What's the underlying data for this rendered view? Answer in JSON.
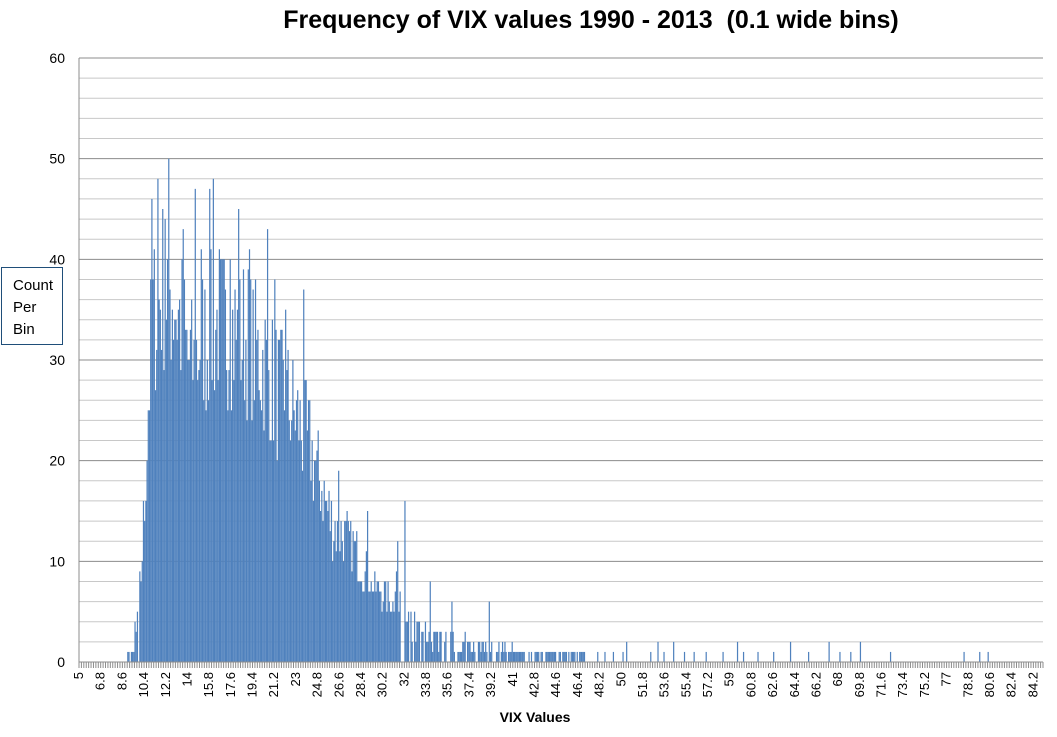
{
  "chart_data": {
    "type": "bar",
    "title": "Frequency of VIX values 1990 - 2013  (0.1 wide bins)",
    "xlabel": "VIX Values",
    "ylabel": [
      "Count",
      "Per",
      "Bin"
    ],
    "ylim": [
      0,
      60
    ],
    "y_ticks": [
      0,
      10,
      20,
      30,
      40,
      50,
      60
    ],
    "x_tick_labels": [
      "5",
      "6.8",
      "8.6",
      "10.4",
      "12.2",
      "14",
      "15.8",
      "17.6",
      "19.4",
      "21.2",
      "23",
      "24.8",
      "26.6",
      "28.4",
      "30.2",
      "32",
      "33.8",
      "35.6",
      "37.4",
      "39.2",
      "41",
      "42.8",
      "44.6",
      "46.4",
      "48.2",
      "50",
      "51.8",
      "53.6",
      "55.4",
      "57.2",
      "59",
      "60.8",
      "62.6",
      "64.4",
      "66.2",
      "68",
      "69.8",
      "71.6",
      "73.4",
      "75.2",
      "77",
      "78.8",
      "80.6",
      "82.4",
      "84.2"
    ],
    "bin_width": 0.1,
    "x_range": [
      5,
      85
    ],
    "gridlines": true,
    "legend": "none",
    "bar_color": "#4f81bd",
    "envelope": {
      "x": [
        8.9,
        9.3,
        9.8,
        10.1,
        10.4,
        10.7,
        11.0,
        11.5,
        12.0,
        12.4,
        13.0,
        13.5,
        14.0,
        14.5,
        15.0,
        15.8,
        16.5,
        17.0,
        17.6,
        18.2,
        19.0,
        19.4,
        20.0,
        20.6,
        21.2,
        22.0,
        23.0,
        23.8,
        24.8,
        25.5,
        26.0,
        26.6,
        27.5,
        28.4,
        29.2,
        30.2,
        31.2,
        32.0,
        33.0,
        33.8,
        35.0,
        36.0,
        37.4,
        38.5,
        39.2,
        40.5,
        41.5,
        42.8,
        44.0,
        45.5,
        47.0
      ],
      "y": [
        0,
        1,
        4,
        9,
        16,
        27,
        34,
        37,
        39,
        38,
        37,
        34,
        31,
        30,
        33,
        33,
        35,
        34,
        34,
        33,
        33,
        32,
        31,
        30,
        28,
        27,
        25,
        23,
        19,
        16,
        14,
        13,
        12,
        10,
        8,
        7,
        6,
        4,
        3,
        3,
        2.5,
        2,
        1.7,
        1.5,
        1.3,
        1.2,
        1,
        1,
        1,
        0.8,
        0.5
      ]
    },
    "peaks": [
      {
        "x": 11.0,
        "y": 46
      },
      {
        "x": 11.5,
        "y": 48
      },
      {
        "x": 12.1,
        "y": 44
      },
      {
        "x": 12.4,
        "y": 50
      },
      {
        "x": 13.6,
        "y": 43
      },
      {
        "x": 14.6,
        "y": 47
      },
      {
        "x": 15.1,
        "y": 41
      },
      {
        "x": 15.8,
        "y": 47
      },
      {
        "x": 16.1,
        "y": 48
      },
      {
        "x": 17.5,
        "y": 40
      },
      {
        "x": 18.2,
        "y": 45
      },
      {
        "x": 19.1,
        "y": 41
      },
      {
        "x": 20.6,
        "y": 43
      },
      {
        "x": 21.2,
        "y": 38
      },
      {
        "x": 22.1,
        "y": 35
      },
      {
        "x": 23.6,
        "y": 37
      },
      {
        "x": 26.5,
        "y": 19
      },
      {
        "x": 28.9,
        "y": 15
      },
      {
        "x": 32.0,
        "y": 16
      },
      {
        "x": 31.4,
        "y": 12
      },
      {
        "x": 34.1,
        "y": 8
      },
      {
        "x": 39.0,
        "y": 6
      },
      {
        "x": 35.9,
        "y": 6
      }
    ],
    "sparse_bins": [
      {
        "x": 48.0,
        "y": 1
      },
      {
        "x": 48.6,
        "y": 1
      },
      {
        "x": 49.3,
        "y": 1
      },
      {
        "x": 50.1,
        "y": 1
      },
      {
        "x": 50.4,
        "y": 2
      },
      {
        "x": 52.4,
        "y": 1
      },
      {
        "x": 53.0,
        "y": 2
      },
      {
        "x": 53.5,
        "y": 1
      },
      {
        "x": 54.3,
        "y": 2
      },
      {
        "x": 55.2,
        "y": 1
      },
      {
        "x": 56.0,
        "y": 1
      },
      {
        "x": 57.0,
        "y": 1
      },
      {
        "x": 58.4,
        "y": 1
      },
      {
        "x": 59.6,
        "y": 2
      },
      {
        "x": 60.1,
        "y": 1
      },
      {
        "x": 61.3,
        "y": 1
      },
      {
        "x": 62.6,
        "y": 1
      },
      {
        "x": 64.0,
        "y": 2
      },
      {
        "x": 65.5,
        "y": 1
      },
      {
        "x": 67.2,
        "y": 2
      },
      {
        "x": 68.1,
        "y": 1
      },
      {
        "x": 69.0,
        "y": 1
      },
      {
        "x": 69.8,
        "y": 2
      },
      {
        "x": 72.3,
        "y": 1
      },
      {
        "x": 78.4,
        "y": 1
      },
      {
        "x": 79.7,
        "y": 1
      },
      {
        "x": 80.4,
        "y": 1
      }
    ]
  }
}
